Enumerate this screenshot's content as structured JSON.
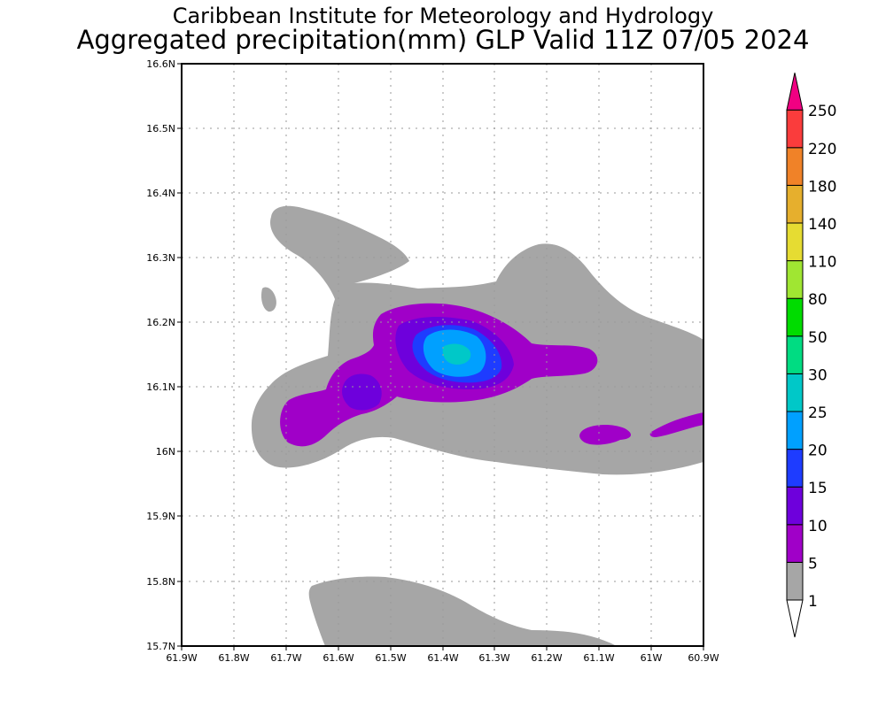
{
  "header": {
    "institute": "Caribbean Institute for Meteorology and Hydrology",
    "product": "Aggregated precipitation(mm) GLP Valid 11Z 07/05 2024"
  },
  "map": {
    "lon_ticks": [
      "61.9W",
      "61.8W",
      "61.7W",
      "61.6W",
      "61.5W",
      "61.4W",
      "61.3W",
      "61.2W",
      "61.1W",
      "61W",
      "60.9W"
    ],
    "lat_ticks": [
      "16.6N",
      "16.5N",
      "16.4N",
      "16.3N",
      "16.2N",
      "16.1N",
      "16N",
      "15.9N",
      "15.8N",
      "15.7N"
    ],
    "lon_range": [
      -61.9,
      -60.9
    ],
    "lat_range": [
      15.7,
      16.6
    ],
    "grid": true
  },
  "legend": {
    "levels": [
      "1",
      "5",
      "10",
      "15",
      "20",
      "25",
      "30",
      "50",
      "80",
      "110",
      "140",
      "180",
      "220",
      "250"
    ],
    "colors": [
      "#a6a6a6",
      "#a000c8",
      "#6e00dc",
      "#1e3cff",
      "#00a0ff",
      "#00c8c8",
      "#00dc82",
      "#00dc00",
      "#a0e632",
      "#e6dc32",
      "#e6af2d",
      "#f08228",
      "#fa3c3c",
      "#f00082"
    ],
    "upper_triangle_color": "#f00082",
    "lower_triangle_color": "#ffffff"
  },
  "chart_data": {
    "type": "map",
    "variable": "Aggregated precipitation",
    "unit": "mm",
    "valid": "11Z 07/05 2024",
    "extent": {
      "lon": [
        -61.9,
        -60.9
      ],
      "lat": [
        15.7,
        16.6
      ]
    },
    "max_region": {
      "lon": -61.38,
      "lat": 16.15,
      "class": "25-30"
    }
  }
}
